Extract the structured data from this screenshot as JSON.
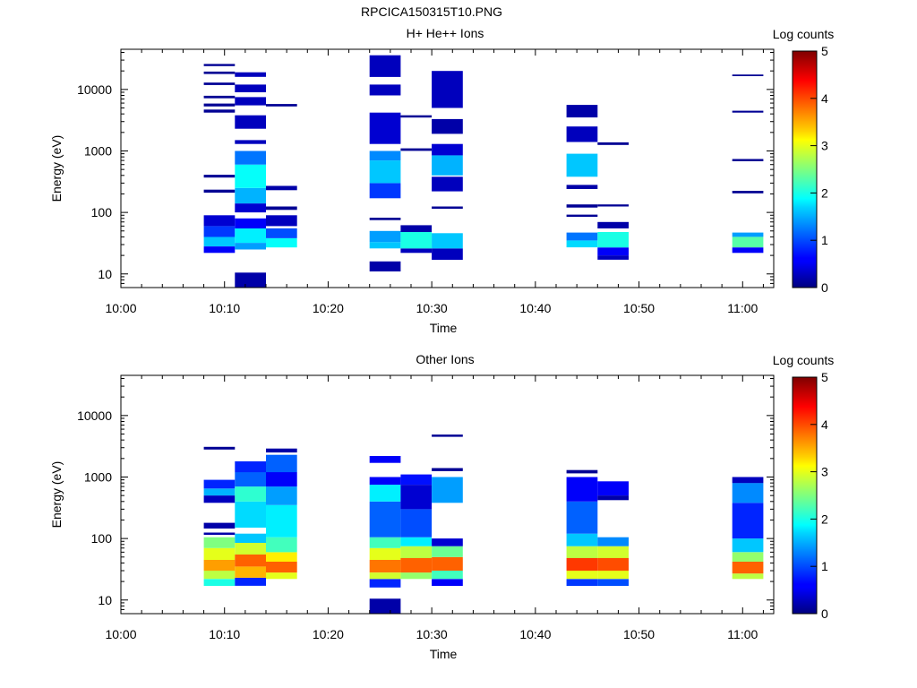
{
  "figure_title": "RPCICA150315T10.PNG",
  "chart_data": [
    {
      "type": "heatmap",
      "title": "H+ He++ Ions",
      "xlabel": "Time",
      "ylabel": "Energy (eV)",
      "x_ticks": [
        "10:00",
        "10:10",
        "10:20",
        "10:30",
        "10:40",
        "10:50",
        "11:00"
      ],
      "y_ticks": [
        "10",
        "100",
        "1000",
        "10000"
      ],
      "y_scale": "log",
      "ylim": [
        6,
        45000
      ],
      "xlim": [
        "10:00",
        "11:03"
      ],
      "colorbar": {
        "label": "Log counts",
        "ticks": [
          "0",
          "1",
          "2",
          "3",
          "4",
          "5"
        ],
        "range": [
          0,
          5
        ],
        "colormap": "jet"
      },
      "columns": [
        {
          "t_start": "10:08",
          "t_end": "10:11",
          "bins": [
            {
              "e_lo": 22,
              "e_hi": 28,
              "v": 0.6
            },
            {
              "e_lo": 28,
              "e_hi": 40,
              "v": 1.6
            },
            {
              "e_lo": 40,
              "e_hi": 60,
              "v": 0.9
            },
            {
              "e_lo": 60,
              "e_hi": 90,
              "v": 0.4
            },
            {
              "e_lo": 210,
              "e_hi": 235,
              "v": 0.1
            },
            {
              "e_lo": 370,
              "e_hi": 410,
              "v": 0.1
            },
            {
              "e_lo": 4200,
              "e_hi": 4700,
              "v": 0.1
            },
            {
              "e_lo": 5300,
              "e_hi": 5900,
              "v": 0.1
            },
            {
              "e_lo": 7200,
              "e_hi": 7900,
              "v": 0.1
            },
            {
              "e_lo": 11800,
              "e_hi": 12900,
              "v": 0.1
            },
            {
              "e_lo": 17800,
              "e_hi": 19500,
              "v": 0.1
            },
            {
              "e_lo": 24000,
              "e_hi": 26000,
              "v": 0.1
            }
          ]
        },
        {
          "t_start": "10:11",
          "t_end": "10:14",
          "bins": [
            {
              "e_lo": 6,
              "e_hi": 10.5,
              "v": 0.2
            },
            {
              "e_lo": 25,
              "e_hi": 32,
              "v": 1.4
            },
            {
              "e_lo": 32,
              "e_hi": 55,
              "v": 1.8
            },
            {
              "e_lo": 55,
              "e_hi": 80,
              "v": 0.6
            },
            {
              "e_lo": 100,
              "e_hi": 140,
              "v": 0.4
            },
            {
              "e_lo": 140,
              "e_hi": 250,
              "v": 1.5
            },
            {
              "e_lo": 250,
              "e_hi": 600,
              "v": 1.9
            },
            {
              "e_lo": 600,
              "e_hi": 1000,
              "v": 1.2
            },
            {
              "e_lo": 1300,
              "e_hi": 1500,
              "v": 0.3
            },
            {
              "e_lo": 2300,
              "e_hi": 3800,
              "v": 0.3
            },
            {
              "e_lo": 5500,
              "e_hi": 7500,
              "v": 0.3
            },
            {
              "e_lo": 9000,
              "e_hi": 12000,
              "v": 0.3
            },
            {
              "e_lo": 16000,
              "e_hi": 19000,
              "v": 0.3
            }
          ]
        },
        {
          "t_start": "10:14",
          "t_end": "10:17",
          "bins": [
            {
              "e_lo": 27,
              "e_hi": 38,
              "v": 1.9
            },
            {
              "e_lo": 38,
              "e_hi": 55,
              "v": 1.0
            },
            {
              "e_lo": 60,
              "e_hi": 90,
              "v": 0.3
            },
            {
              "e_lo": 110,
              "e_hi": 125,
              "v": 0.1
            },
            {
              "e_lo": 230,
              "e_hi": 270,
              "v": 0.2
            },
            {
              "e_lo": 5300,
              "e_hi": 5800,
              "v": 0.1
            }
          ]
        },
        {
          "t_start": "10:24",
          "t_end": "10:27",
          "bins": [
            {
              "e_lo": 11,
              "e_hi": 16,
              "v": 0.2
            },
            {
              "e_lo": 26,
              "e_hi": 33,
              "v": 1.6
            },
            {
              "e_lo": 33,
              "e_hi": 50,
              "v": 1.4
            },
            {
              "e_lo": 75,
              "e_hi": 82,
              "v": 0.1
            },
            {
              "e_lo": 170,
              "e_hi": 300,
              "v": 0.9
            },
            {
              "e_lo": 300,
              "e_hi": 700,
              "v": 1.6
            },
            {
              "e_lo": 700,
              "e_hi": 1000,
              "v": 1.3
            },
            {
              "e_lo": 1300,
              "e_hi": 4200,
              "v": 0.4
            },
            {
              "e_lo": 8000,
              "e_hi": 12000,
              "v": 0.3
            },
            {
              "e_lo": 16000,
              "e_hi": 36000,
              "v": 0.3
            }
          ]
        },
        {
          "t_start": "10:27",
          "t_end": "10:30",
          "bins": [
            {
              "e_lo": 22,
              "e_hi": 26,
              "v": 0.3
            },
            {
              "e_lo": 26,
              "e_hi": 48,
              "v": 2.0
            },
            {
              "e_lo": 48,
              "e_hi": 62,
              "v": 0.2
            },
            {
              "e_lo": 1000,
              "e_hi": 1100,
              "v": 0.1
            },
            {
              "e_lo": 3500,
              "e_hi": 3800,
              "v": 0.1
            }
          ]
        },
        {
          "t_start": "10:30",
          "t_end": "10:33",
          "bins": [
            {
              "e_lo": 17,
              "e_hi": 26,
              "v": 0.3
            },
            {
              "e_lo": 26,
              "e_hi": 46,
              "v": 1.6
            },
            {
              "e_lo": 115,
              "e_hi": 125,
              "v": 0.1
            },
            {
              "e_lo": 220,
              "e_hi": 380,
              "v": 0.3
            },
            {
              "e_lo": 400,
              "e_hi": 850,
              "v": 1.5
            },
            {
              "e_lo": 850,
              "e_hi": 1300,
              "v": 0.4
            },
            {
              "e_lo": 1900,
              "e_hi": 3300,
              "v": 0.2
            },
            {
              "e_lo": 5000,
              "e_hi": 20000,
              "v": 0.3
            }
          ]
        },
        {
          "t_start": "10:43",
          "t_end": "10:46",
          "bins": [
            {
              "e_lo": 27,
              "e_hi": 35,
              "v": 1.7
            },
            {
              "e_lo": 35,
              "e_hi": 47,
              "v": 1.2
            },
            {
              "e_lo": 85,
              "e_hi": 92,
              "v": 0.1
            },
            {
              "e_lo": 120,
              "e_hi": 135,
              "v": 0.1
            },
            {
              "e_lo": 240,
              "e_hi": 280,
              "v": 0.2
            },
            {
              "e_lo": 380,
              "e_hi": 900,
              "v": 1.6
            },
            {
              "e_lo": 1400,
              "e_hi": 2500,
              "v": 0.3
            },
            {
              "e_lo": 3500,
              "e_hi": 5600,
              "v": 0.2
            }
          ]
        },
        {
          "t_start": "10:46",
          "t_end": "10:49",
          "bins": [
            {
              "e_lo": 17,
              "e_hi": 20,
              "v": 0.3
            },
            {
              "e_lo": 20,
              "e_hi": 27,
              "v": 0.6
            },
            {
              "e_lo": 27,
              "e_hi": 48,
              "v": 2.0
            },
            {
              "e_lo": 55,
              "e_hi": 70,
              "v": 0.2
            },
            {
              "e_lo": 125,
              "e_hi": 135,
              "v": 0.1
            },
            {
              "e_lo": 1250,
              "e_hi": 1380,
              "v": 0.1
            }
          ]
        },
        {
          "t_start": "10:59",
          "t_end": "11:02",
          "bins": [
            {
              "e_lo": 22,
              "e_hi": 27,
              "v": 0.6
            },
            {
              "e_lo": 27,
              "e_hi": 40,
              "v": 2.3
            },
            {
              "e_lo": 40,
              "e_hi": 47,
              "v": 1.4
            },
            {
              "e_lo": 205,
              "e_hi": 225,
              "v": 0.1
            },
            {
              "e_lo": 680,
              "e_hi": 740,
              "v": 0.1
            },
            {
              "e_lo": 4200,
              "e_hi": 4500,
              "v": 0.1
            },
            {
              "e_lo": 16500,
              "e_hi": 17500,
              "v": 0.1
            }
          ]
        }
      ]
    },
    {
      "type": "heatmap",
      "title": "Other Ions",
      "xlabel": "Time",
      "ylabel": "Energy (eV)",
      "x_ticks": [
        "10:00",
        "10:10",
        "10:20",
        "10:30",
        "10:40",
        "10:50",
        "11:00"
      ],
      "y_ticks": [
        "10",
        "100",
        "1000",
        "10000"
      ],
      "y_scale": "log",
      "ylim": [
        6,
        45000
      ],
      "xlim": [
        "10:00",
        "11:03"
      ],
      "colorbar": {
        "label": "Log counts",
        "ticks": [
          "0",
          "1",
          "2",
          "3",
          "4",
          "5"
        ],
        "range": [
          0,
          5
        ],
        "colormap": "jet"
      },
      "columns": [
        {
          "t_start": "10:08",
          "t_end": "10:11",
          "bins": [
            {
              "e_lo": 17,
              "e_hi": 22,
              "v": 2.0
            },
            {
              "e_lo": 22,
              "e_hi": 30,
              "v": 2.8
            },
            {
              "e_lo": 30,
              "e_hi": 45,
              "v": 3.6
            },
            {
              "e_lo": 45,
              "e_hi": 70,
              "v": 3.0
            },
            {
              "e_lo": 70,
              "e_hi": 105,
              "v": 2.5
            },
            {
              "e_lo": 115,
              "e_hi": 125,
              "v": 0.2
            },
            {
              "e_lo": 145,
              "e_hi": 180,
              "v": 0.2
            },
            {
              "e_lo": 380,
              "e_hi": 500,
              "v": 0.3
            },
            {
              "e_lo": 500,
              "e_hi": 650,
              "v": 1.5
            },
            {
              "e_lo": 650,
              "e_hi": 900,
              "v": 0.8
            },
            {
              "e_lo": 2800,
              "e_hi": 3100,
              "v": 0.1
            }
          ]
        },
        {
          "t_start": "10:11",
          "t_end": "10:14",
          "bins": [
            {
              "e_lo": 17,
              "e_hi": 23,
              "v": 0.8
            },
            {
              "e_lo": 23,
              "e_hi": 35,
              "v": 3.5
            },
            {
              "e_lo": 35,
              "e_hi": 55,
              "v": 3.9
            },
            {
              "e_lo": 55,
              "e_hi": 85,
              "v": 2.9
            },
            {
              "e_lo": 85,
              "e_hi": 120,
              "v": 1.6
            },
            {
              "e_lo": 150,
              "e_hi": 400,
              "v": 1.7
            },
            {
              "e_lo": 400,
              "e_hi": 700,
              "v": 2.1
            },
            {
              "e_lo": 700,
              "e_hi": 1200,
              "v": 1.1
            },
            {
              "e_lo": 1200,
              "e_hi": 1800,
              "v": 0.8
            }
          ]
        },
        {
          "t_start": "10:14",
          "t_end": "10:17",
          "bins": [
            {
              "e_lo": 22,
              "e_hi": 28,
              "v": 3.0
            },
            {
              "e_lo": 28,
              "e_hi": 42,
              "v": 3.9
            },
            {
              "e_lo": 42,
              "e_hi": 60,
              "v": 3.2
            },
            {
              "e_lo": 60,
              "e_hi": 105,
              "v": 2.2
            },
            {
              "e_lo": 105,
              "e_hi": 350,
              "v": 1.8
            },
            {
              "e_lo": 350,
              "e_hi": 700,
              "v": 1.4
            },
            {
              "e_lo": 700,
              "e_hi": 1200,
              "v": 0.6
            },
            {
              "e_lo": 1200,
              "e_hi": 2300,
              "v": 1.1
            },
            {
              "e_lo": 2500,
              "e_hi": 2900,
              "v": 0.2
            }
          ]
        },
        {
          "t_start": "10:24",
          "t_end": "10:27",
          "bins": [
            {
              "e_lo": 6,
              "e_hi": 10.5,
              "v": 0.2
            },
            {
              "e_lo": 16,
              "e_hi": 22,
              "v": 0.8
            },
            {
              "e_lo": 22,
              "e_hi": 28,
              "v": 2.9
            },
            {
              "e_lo": 28,
              "e_hi": 45,
              "v": 3.8
            },
            {
              "e_lo": 45,
              "e_hi": 70,
              "v": 3.0
            },
            {
              "e_lo": 70,
              "e_hi": 105,
              "v": 2.2
            },
            {
              "e_lo": 105,
              "e_hi": 400,
              "v": 1.1
            },
            {
              "e_lo": 400,
              "e_hi": 750,
              "v": 1.8
            },
            {
              "e_lo": 750,
              "e_hi": 1000,
              "v": 0.6
            },
            {
              "e_lo": 1700,
              "e_hi": 2200,
              "v": 0.6
            }
          ]
        },
        {
          "t_start": "10:27",
          "t_end": "10:30",
          "bins": [
            {
              "e_lo": 22,
              "e_hi": 28,
              "v": 2.6
            },
            {
              "e_lo": 28,
              "e_hi": 48,
              "v": 3.9
            },
            {
              "e_lo": 48,
              "e_hi": 75,
              "v": 2.8
            },
            {
              "e_lo": 75,
              "e_hi": 105,
              "v": 1.8
            },
            {
              "e_lo": 105,
              "e_hi": 300,
              "v": 1.0
            },
            {
              "e_lo": 300,
              "e_hi": 750,
              "v": 0.4
            },
            {
              "e_lo": 750,
              "e_hi": 1100,
              "v": 0.7
            }
          ]
        },
        {
          "t_start": "10:30",
          "t_end": "10:33",
          "bins": [
            {
              "e_lo": 17,
              "e_hi": 22,
              "v": 0.6
            },
            {
              "e_lo": 22,
              "e_hi": 30,
              "v": 2.2
            },
            {
              "e_lo": 30,
              "e_hi": 50,
              "v": 3.9
            },
            {
              "e_lo": 50,
              "e_hi": 75,
              "v": 2.4
            },
            {
              "e_lo": 75,
              "e_hi": 100,
              "v": 0.4
            },
            {
              "e_lo": 380,
              "e_hi": 1000,
              "v": 1.4
            },
            {
              "e_lo": 1250,
              "e_hi": 1400,
              "v": 0.1
            },
            {
              "e_lo": 4500,
              "e_hi": 4900,
              "v": 0.1
            }
          ]
        },
        {
          "t_start": "10:43",
          "t_end": "10:46",
          "bins": [
            {
              "e_lo": 17,
              "e_hi": 22,
              "v": 0.9
            },
            {
              "e_lo": 22,
              "e_hi": 30,
              "v": 3.0
            },
            {
              "e_lo": 30,
              "e_hi": 48,
              "v": 4.1
            },
            {
              "e_lo": 48,
              "e_hi": 75,
              "v": 2.8
            },
            {
              "e_lo": 75,
              "e_hi": 120,
              "v": 1.6
            },
            {
              "e_lo": 120,
              "e_hi": 400,
              "v": 1.1
            },
            {
              "e_lo": 400,
              "e_hi": 1000,
              "v": 0.6
            },
            {
              "e_lo": 1150,
              "e_hi": 1300,
              "v": 0.1
            }
          ]
        },
        {
          "t_start": "10:46",
          "t_end": "10:49",
          "bins": [
            {
              "e_lo": 17,
              "e_hi": 22,
              "v": 1.0
            },
            {
              "e_lo": 22,
              "e_hi": 30,
              "v": 3.0
            },
            {
              "e_lo": 30,
              "e_hi": 48,
              "v": 4.0
            },
            {
              "e_lo": 48,
              "e_hi": 75,
              "v": 2.9
            },
            {
              "e_lo": 75,
              "e_hi": 105,
              "v": 1.3
            },
            {
              "e_lo": 420,
              "e_hi": 500,
              "v": 0.2
            },
            {
              "e_lo": 500,
              "e_hi": 850,
              "v": 0.6
            }
          ]
        },
        {
          "t_start": "10:59",
          "t_end": "11:02",
          "bins": [
            {
              "e_lo": 22,
              "e_hi": 27,
              "v": 2.8
            },
            {
              "e_lo": 27,
              "e_hi": 42,
              "v": 3.9
            },
            {
              "e_lo": 42,
              "e_hi": 60,
              "v": 2.6
            },
            {
              "e_lo": 60,
              "e_hi": 100,
              "v": 1.6
            },
            {
              "e_lo": 100,
              "e_hi": 380,
              "v": 0.8
            },
            {
              "e_lo": 380,
              "e_hi": 800,
              "v": 1.3
            },
            {
              "e_lo": 800,
              "e_hi": 1000,
              "v": 0.3
            }
          ]
        }
      ]
    }
  ]
}
